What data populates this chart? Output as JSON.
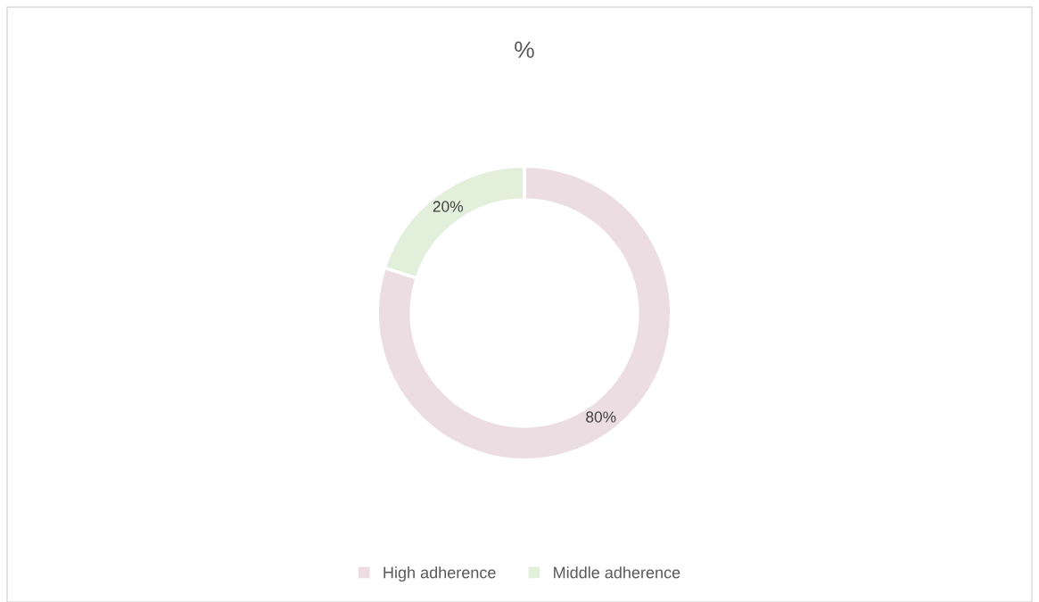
{
  "chart_data": {
    "type": "donut",
    "title": "%",
    "categories": [
      "High adherence",
      "Middle adherence"
    ],
    "values": [
      80,
      20
    ],
    "colors": [
      "#ecdde3",
      "#e2efda"
    ],
    "value_labels": [
      "80%",
      "20%"
    ],
    "legend": "bottom"
  }
}
